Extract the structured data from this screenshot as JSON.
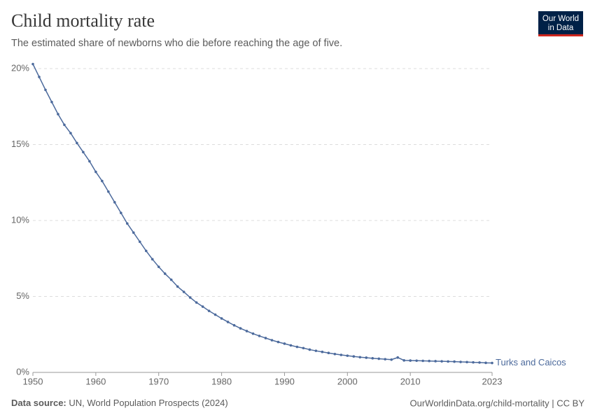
{
  "chart_data": {
    "type": "line",
    "title": "Child mortality rate",
    "subtitle": "The estimated share of newborns who die before reaching the age of five.",
    "logo": [
      "Our World",
      "in Data"
    ],
    "source_label": "Data source:",
    "source": "UN, World Population Prospects (2024)",
    "credit": "OurWorldinData.org/child-mortality | CC BY",
    "x": [
      1950,
      1951,
      1952,
      1953,
      1954,
      1955,
      1956,
      1957,
      1958,
      1959,
      1960,
      1961,
      1962,
      1963,
      1964,
      1965,
      1966,
      1967,
      1968,
      1969,
      1970,
      1971,
      1972,
      1973,
      1974,
      1975,
      1976,
      1977,
      1978,
      1979,
      1980,
      1981,
      1982,
      1983,
      1984,
      1985,
      1986,
      1987,
      1988,
      1989,
      1990,
      1991,
      1992,
      1993,
      1994,
      1995,
      1996,
      1997,
      1998,
      1999,
      2000,
      2001,
      2002,
      2003,
      2004,
      2005,
      2006,
      2007,
      2008,
      2009,
      2010,
      2011,
      2012,
      2013,
      2014,
      2015,
      2016,
      2017,
      2018,
      2019,
      2020,
      2021,
      2022,
      2023
    ],
    "series": [
      {
        "name": "Turks and Caicos",
        "color": "#4c6a9c",
        "values": [
          20.3,
          19.45,
          18.6,
          17.8,
          17.0,
          16.3,
          15.75,
          15.1,
          14.5,
          13.9,
          13.2,
          12.6,
          11.9,
          11.2,
          10.5,
          9.8,
          9.2,
          8.6,
          8.0,
          7.45,
          6.95,
          6.5,
          6.1,
          5.65,
          5.3,
          4.93,
          4.6,
          4.33,
          4.05,
          3.8,
          3.55,
          3.32,
          3.1,
          2.9,
          2.72,
          2.55,
          2.4,
          2.26,
          2.12,
          2.0,
          1.89,
          1.78,
          1.68,
          1.6,
          1.5,
          1.42,
          1.35,
          1.28,
          1.21,
          1.15,
          1.1,
          1.05,
          1.0,
          0.97,
          0.93,
          0.9,
          0.87,
          0.84,
          0.98,
          0.79,
          0.78,
          0.77,
          0.76,
          0.75,
          0.74,
          0.73,
          0.72,
          0.71,
          0.69,
          0.68,
          0.66,
          0.65,
          0.63,
          0.62
        ]
      }
    ],
    "xlim": [
      1950,
      2023
    ],
    "xticks": [
      1950,
      1960,
      1970,
      1980,
      1990,
      2000,
      2010,
      2023
    ],
    "ylim": [
      0,
      20
    ],
    "yticks": [
      {
        "value": 0,
        "label": "0%"
      },
      {
        "value": 5,
        "label": "5%"
      },
      {
        "value": 10,
        "label": "10%"
      },
      {
        "value": 15,
        "label": "15%"
      },
      {
        "value": 20,
        "label": "20%"
      }
    ],
    "grid": true
  }
}
